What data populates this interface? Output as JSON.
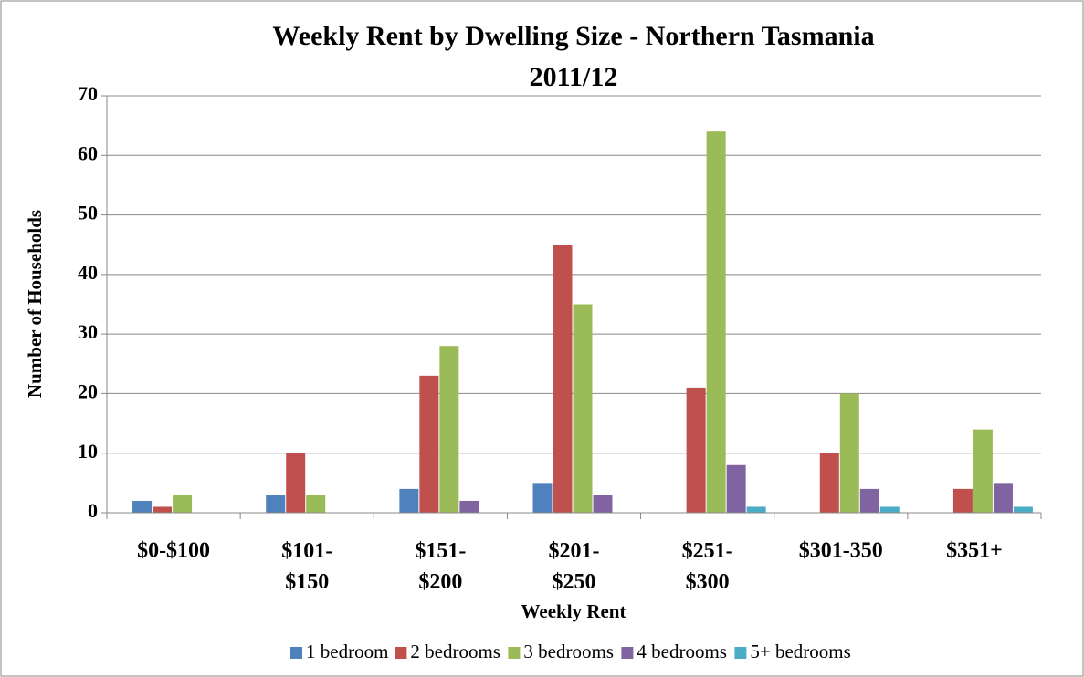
{
  "chart_data": {
    "type": "bar",
    "title": "Weekly Rent by Dwelling Size - Northern Tasmania",
    "subtitle": "2011/12",
    "x_label": "Weekly Rent",
    "y_label": "Number of Households",
    "categories": [
      "$0-$100",
      "$101-\n$150",
      "$151-\n$200",
      "$201-\n$250",
      "$251-\n$300",
      "$301-350",
      "$351+"
    ],
    "series": [
      {
        "name": "1 bedroom",
        "color": "#4f81bd",
        "values": [
          2,
          3,
          4,
          5,
          0,
          0,
          0
        ]
      },
      {
        "name": "2 bedrooms",
        "color": "#c0504d",
        "values": [
          1,
          10,
          23,
          45,
          21,
          10,
          4
        ]
      },
      {
        "name": "3 bedrooms",
        "color": "#9bbb59",
        "values": [
          3,
          3,
          28,
          35,
          64,
          20,
          14
        ]
      },
      {
        "name": "4 bedrooms",
        "color": "#8064a2",
        "values": [
          0,
          0,
          2,
          3,
          8,
          4,
          5
        ]
      },
      {
        "name": "5+ bedrooms",
        "color": "#4bacc6",
        "values": [
          0,
          0,
          0,
          0,
          1,
          1,
          1
        ]
      }
    ],
    "ylim": [
      0,
      70
    ],
    "yticks": [
      0,
      10,
      20,
      30,
      40,
      50,
      60,
      70
    ],
    "grid": true,
    "legend": "bottom"
  }
}
